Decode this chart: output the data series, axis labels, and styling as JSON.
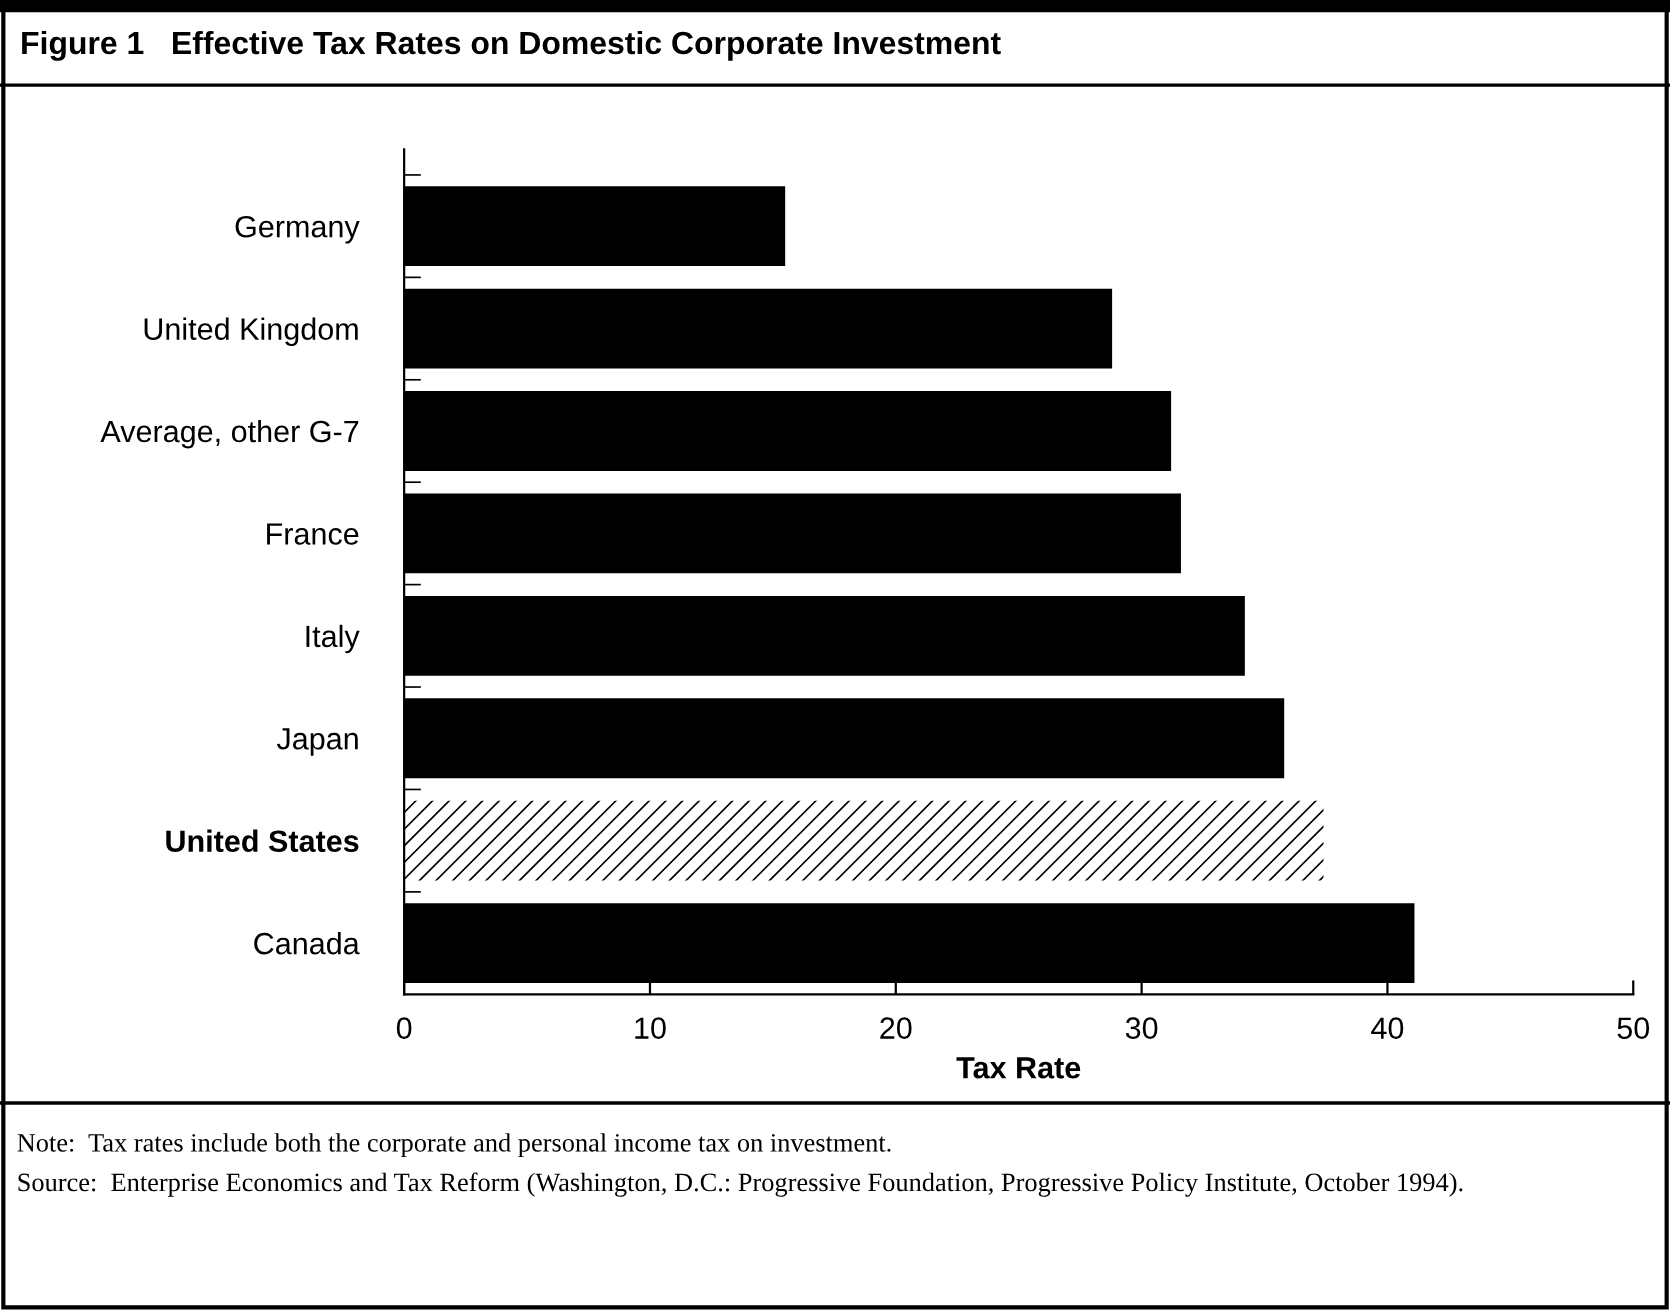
{
  "chart_data": {
    "type": "bar",
    "orientation": "horizontal",
    "title": "Figure 1   Effective Tax Rates on Domestic Corporate Investment",
    "xlabel": "Tax Rate",
    "categories": [
      "Germany",
      "United Kingdom",
      "Average, other G-7",
      "France",
      "Italy",
      "Japan",
      "United States",
      "Canada"
    ],
    "values": [
      15.5,
      28.8,
      31.2,
      31.6,
      34.2,
      35.8,
      37.4,
      41.1
    ],
    "colors": [
      "#000000",
      "#000000",
      "#000000",
      "#000000",
      "#000000",
      "#000000",
      "#ffffff",
      "#000000"
    ],
    "xlim": [
      0,
      50
    ],
    "xticks": [
      0,
      10,
      20,
      30,
      40,
      50
    ],
    "grid": false,
    "legend": false,
    "annotations": [
      "Note:  Tax rates include both the corporate and personal income tax on investment.",
      "Source:  Enterprise Economics and Tax Reform (Washington, D.C.: Progressive Foundation, Progressive Policy Institute, October 1994)."
    ]
  }
}
